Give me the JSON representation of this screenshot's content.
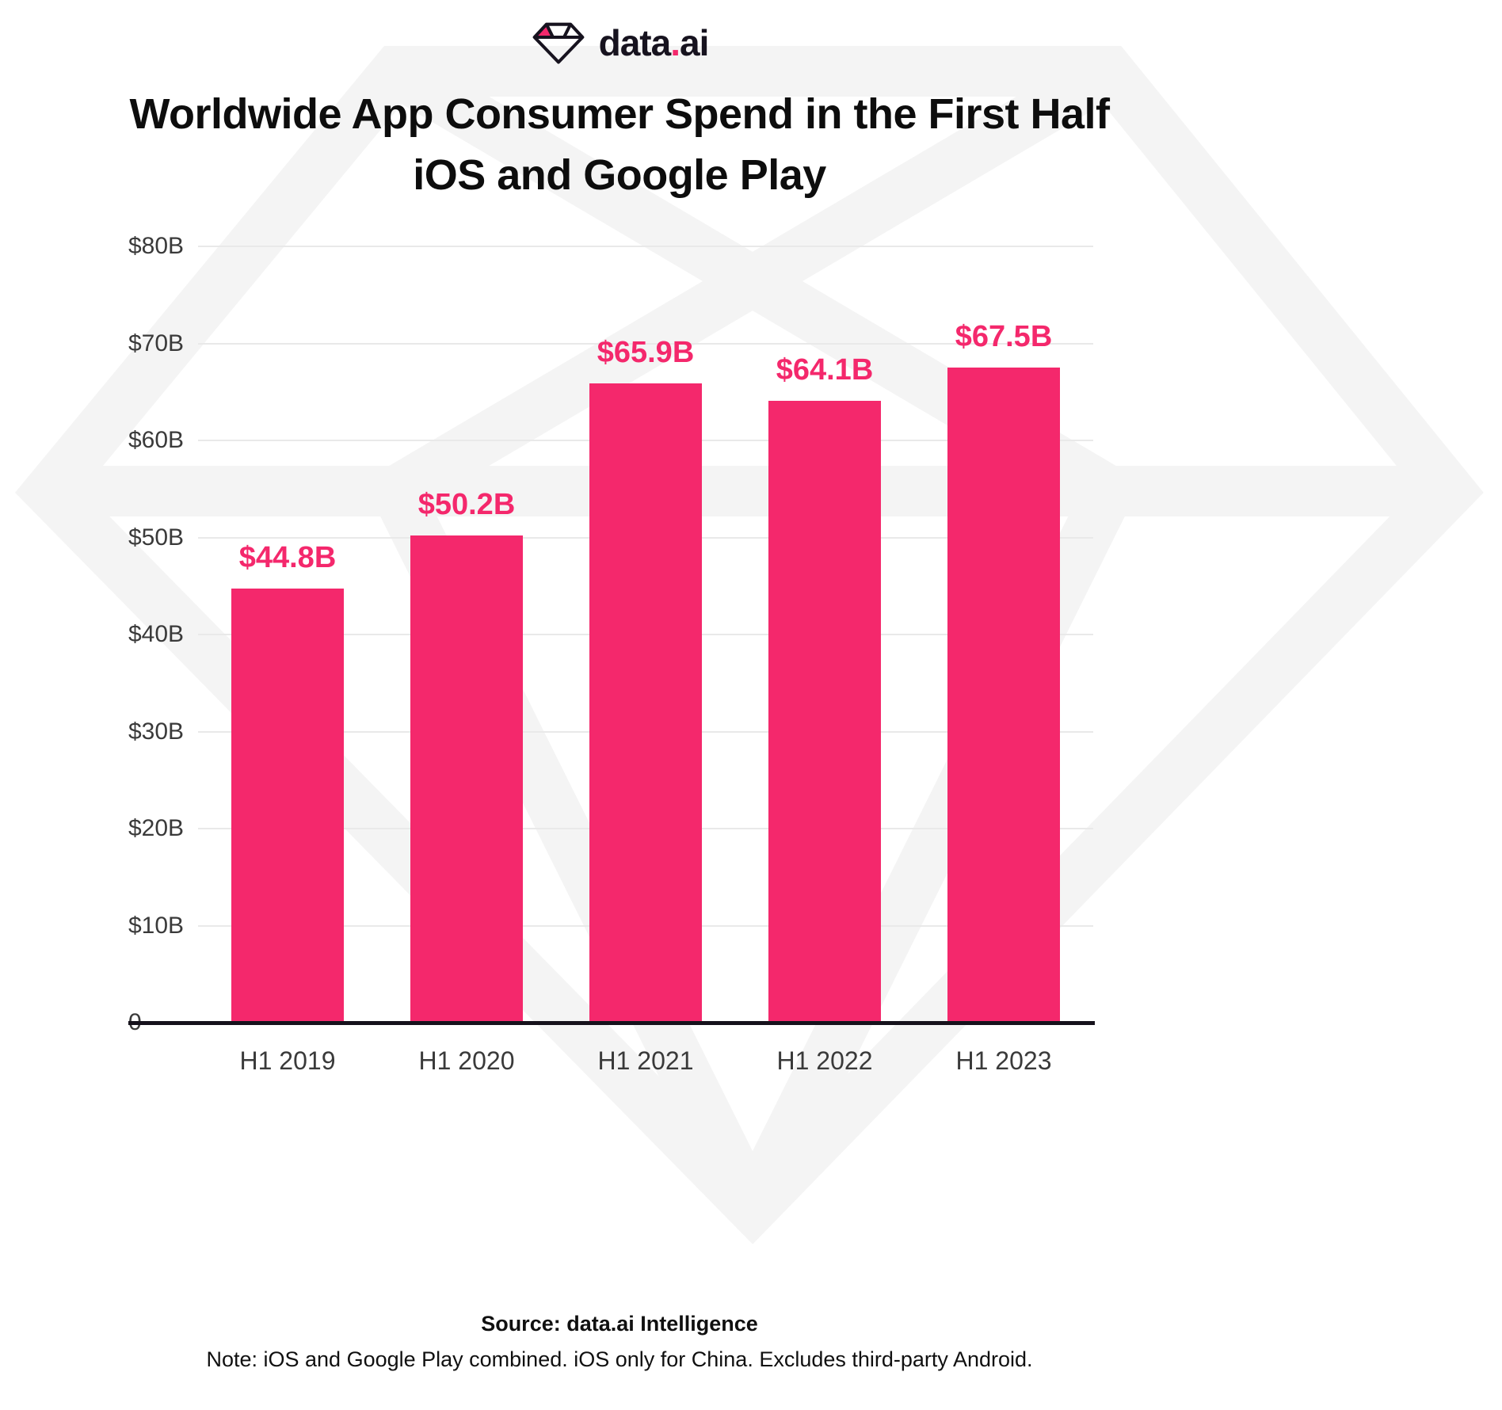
{
  "brand": {
    "name_left": "data",
    "dot": ".",
    "name_right": "ai"
  },
  "title": {
    "line1": "Worldwide App Consumer Spend in the First Half",
    "line2": "iOS and Google Play"
  },
  "footer": {
    "source": "Source: data.ai Intelligence",
    "note": "Note: iOS and Google Play combined. iOS only for China. Excludes third-party Android."
  },
  "colors": {
    "accent": "#F4286C",
    "axis": "#16121C",
    "grid": "#E9E9E9",
    "tick_text": "#3A3A3A",
    "title_text": "#0D0D0D",
    "watermark": "#F4F4F4"
  },
  "chart_data": {
    "type": "bar",
    "title": "Worldwide App Consumer Spend in the First Half iOS and Google Play",
    "categories": [
      "H1 2019",
      "H1 2020",
      "H1 2021",
      "H1 2022",
      "H1 2023"
    ],
    "values": [
      44.8,
      50.2,
      65.9,
      64.1,
      67.5
    ],
    "value_labels": [
      "$44.8B",
      "$50.2B",
      "$65.9B",
      "$64.1B",
      "$67.5B"
    ],
    "ylim": [
      0,
      80
    ],
    "y_ticks": [
      {
        "value": 80,
        "label": "$80B"
      },
      {
        "value": 70,
        "label": "$70B"
      },
      {
        "value": 60,
        "label": "$60B"
      },
      {
        "value": 50,
        "label": "$50B"
      },
      {
        "value": 40,
        "label": "$40B"
      },
      {
        "value": 30,
        "label": "$30B"
      },
      {
        "value": 20,
        "label": "$20B"
      },
      {
        "value": 10,
        "label": "$10B"
      },
      {
        "value": 0,
        "label": "0"
      }
    ],
    "bar_color": "#F4286C",
    "grid": true,
    "legend": "none"
  }
}
